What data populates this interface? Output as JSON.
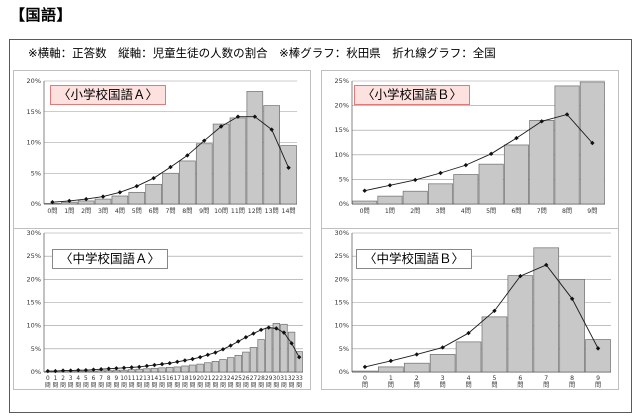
{
  "heading": "【国語】",
  "note": "※横軸：正答数　縦軸：児童生徒の人数の割合　※棒グラフ：秋田県　折れ線グラフ：全国",
  "chart_data": [
    {
      "type": "bar",
      "title": "〈小学校国語Ａ〉",
      "categories": [
        "0問",
        "1問",
        "2問",
        "3問",
        "4問",
        "5問",
        "6問",
        "7問",
        "8問",
        "9問",
        "10問",
        "11問",
        "12問",
        "13問",
        "14問"
      ],
      "ylim": [
        0,
        20
      ],
      "yticks": [
        "0%",
        "5%",
        "10%",
        "15%",
        "20%"
      ],
      "series": [
        {
          "values": [
            0.1,
            0.3,
            0.5,
            0.8,
            1.3,
            1.9,
            3.2,
            5.0,
            7.0,
            9.8,
            13.0,
            14.0,
            18.3,
            16.0,
            9.5
          ]
        },
        {
          "values": [
            0.3,
            0.5,
            0.8,
            1.2,
            1.9,
            2.9,
            4.2,
            6.0,
            7.9,
            10.3,
            12.6,
            14.2,
            14.2,
            12.1,
            5.9
          ]
        }
      ],
      "grid": true
    },
    {
      "type": "bar",
      "title": "〈小学校国語Ｂ〉",
      "categories": [
        "0問",
        "1問",
        "2問",
        "3問",
        "4問",
        "5問",
        "6問",
        "7問",
        "8問",
        "9問"
      ],
      "ylim": [
        0,
        25
      ],
      "yticks": [
        "0%",
        "5%",
        "10%",
        "15%",
        "20%",
        "25%"
      ],
      "series": [
        {
          "values": [
            0.6,
            1.6,
            2.6,
            4.1,
            6.0,
            8.1,
            12.0,
            17.0,
            24.0,
            24.8
          ]
        },
        {
          "values": [
            2.7,
            3.8,
            4.9,
            6.3,
            7.9,
            10.2,
            13.4,
            16.8,
            18.2,
            12.4
          ]
        }
      ],
      "grid": true
    },
    {
      "type": "bar",
      "title": "〈中学校国語Ａ〉",
      "categories": [
        "0問",
        "1問",
        "2問",
        "3問",
        "4問",
        "5問",
        "6問",
        "7問",
        "8問",
        "9問",
        "10問",
        "11問",
        "12問",
        "13問",
        "14問",
        "15問",
        "16問",
        "17問",
        "18問",
        "19問",
        "20問",
        "21問",
        "22問",
        "23問",
        "24問",
        "25問",
        "26問",
        "27問",
        "28問",
        "29問",
        "30問",
        "31問",
        "32問",
        "33問"
      ],
      "ylim": [
        0,
        30
      ],
      "yticks": [
        "0%",
        "5%",
        "10%",
        "15%",
        "20%",
        "25%",
        "30%"
      ],
      "series": [
        {
          "values": [
            0.1,
            0.1,
            0.1,
            0.1,
            0.2,
            0.2,
            0.2,
            0.3,
            0.3,
            0.4,
            0.4,
            0.5,
            0.6,
            0.7,
            0.8,
            0.9,
            1.0,
            1.1,
            1.3,
            1.5,
            1.7,
            2.0,
            2.3,
            2.7,
            3.1,
            3.6,
            4.3,
            5.3,
            7.0,
            9.5,
            10.5,
            10.3,
            8.6,
            4.4
          ]
        },
        {
          "values": [
            0.2,
            0.2,
            0.3,
            0.3,
            0.4,
            0.4,
            0.5,
            0.6,
            0.7,
            0.8,
            0.9,
            1.0,
            1.1,
            1.3,
            1.5,
            1.7,
            1.9,
            2.2,
            2.5,
            2.8,
            3.2,
            3.7,
            4.2,
            4.9,
            5.7,
            6.6,
            7.5,
            8.3,
            9.1,
            9.6,
            9.4,
            8.5,
            6.2,
            3.2
          ]
        }
      ],
      "grid": true
    },
    {
      "type": "bar",
      "title": "〈中学校国語Ｂ〉",
      "categories": [
        "0問",
        "1問",
        "2問",
        "3問",
        "4問",
        "5問",
        "6問",
        "7問",
        "8問",
        "9問"
      ],
      "ylim": [
        0,
        30
      ],
      "yticks": [
        "0%",
        "5%",
        "10%",
        "15%",
        "20%",
        "25%",
        "30%"
      ],
      "series": [
        {
          "values": [
            0.2,
            1.1,
            1.9,
            3.8,
            6.5,
            11.9,
            20.8,
            26.8,
            20.0,
            7.0
          ]
        },
        {
          "values": [
            1.1,
            2.4,
            3.8,
            5.3,
            8.4,
            13.2,
            20.7,
            23.1,
            15.8,
            5.1
          ]
        }
      ],
      "grid": true
    }
  ]
}
